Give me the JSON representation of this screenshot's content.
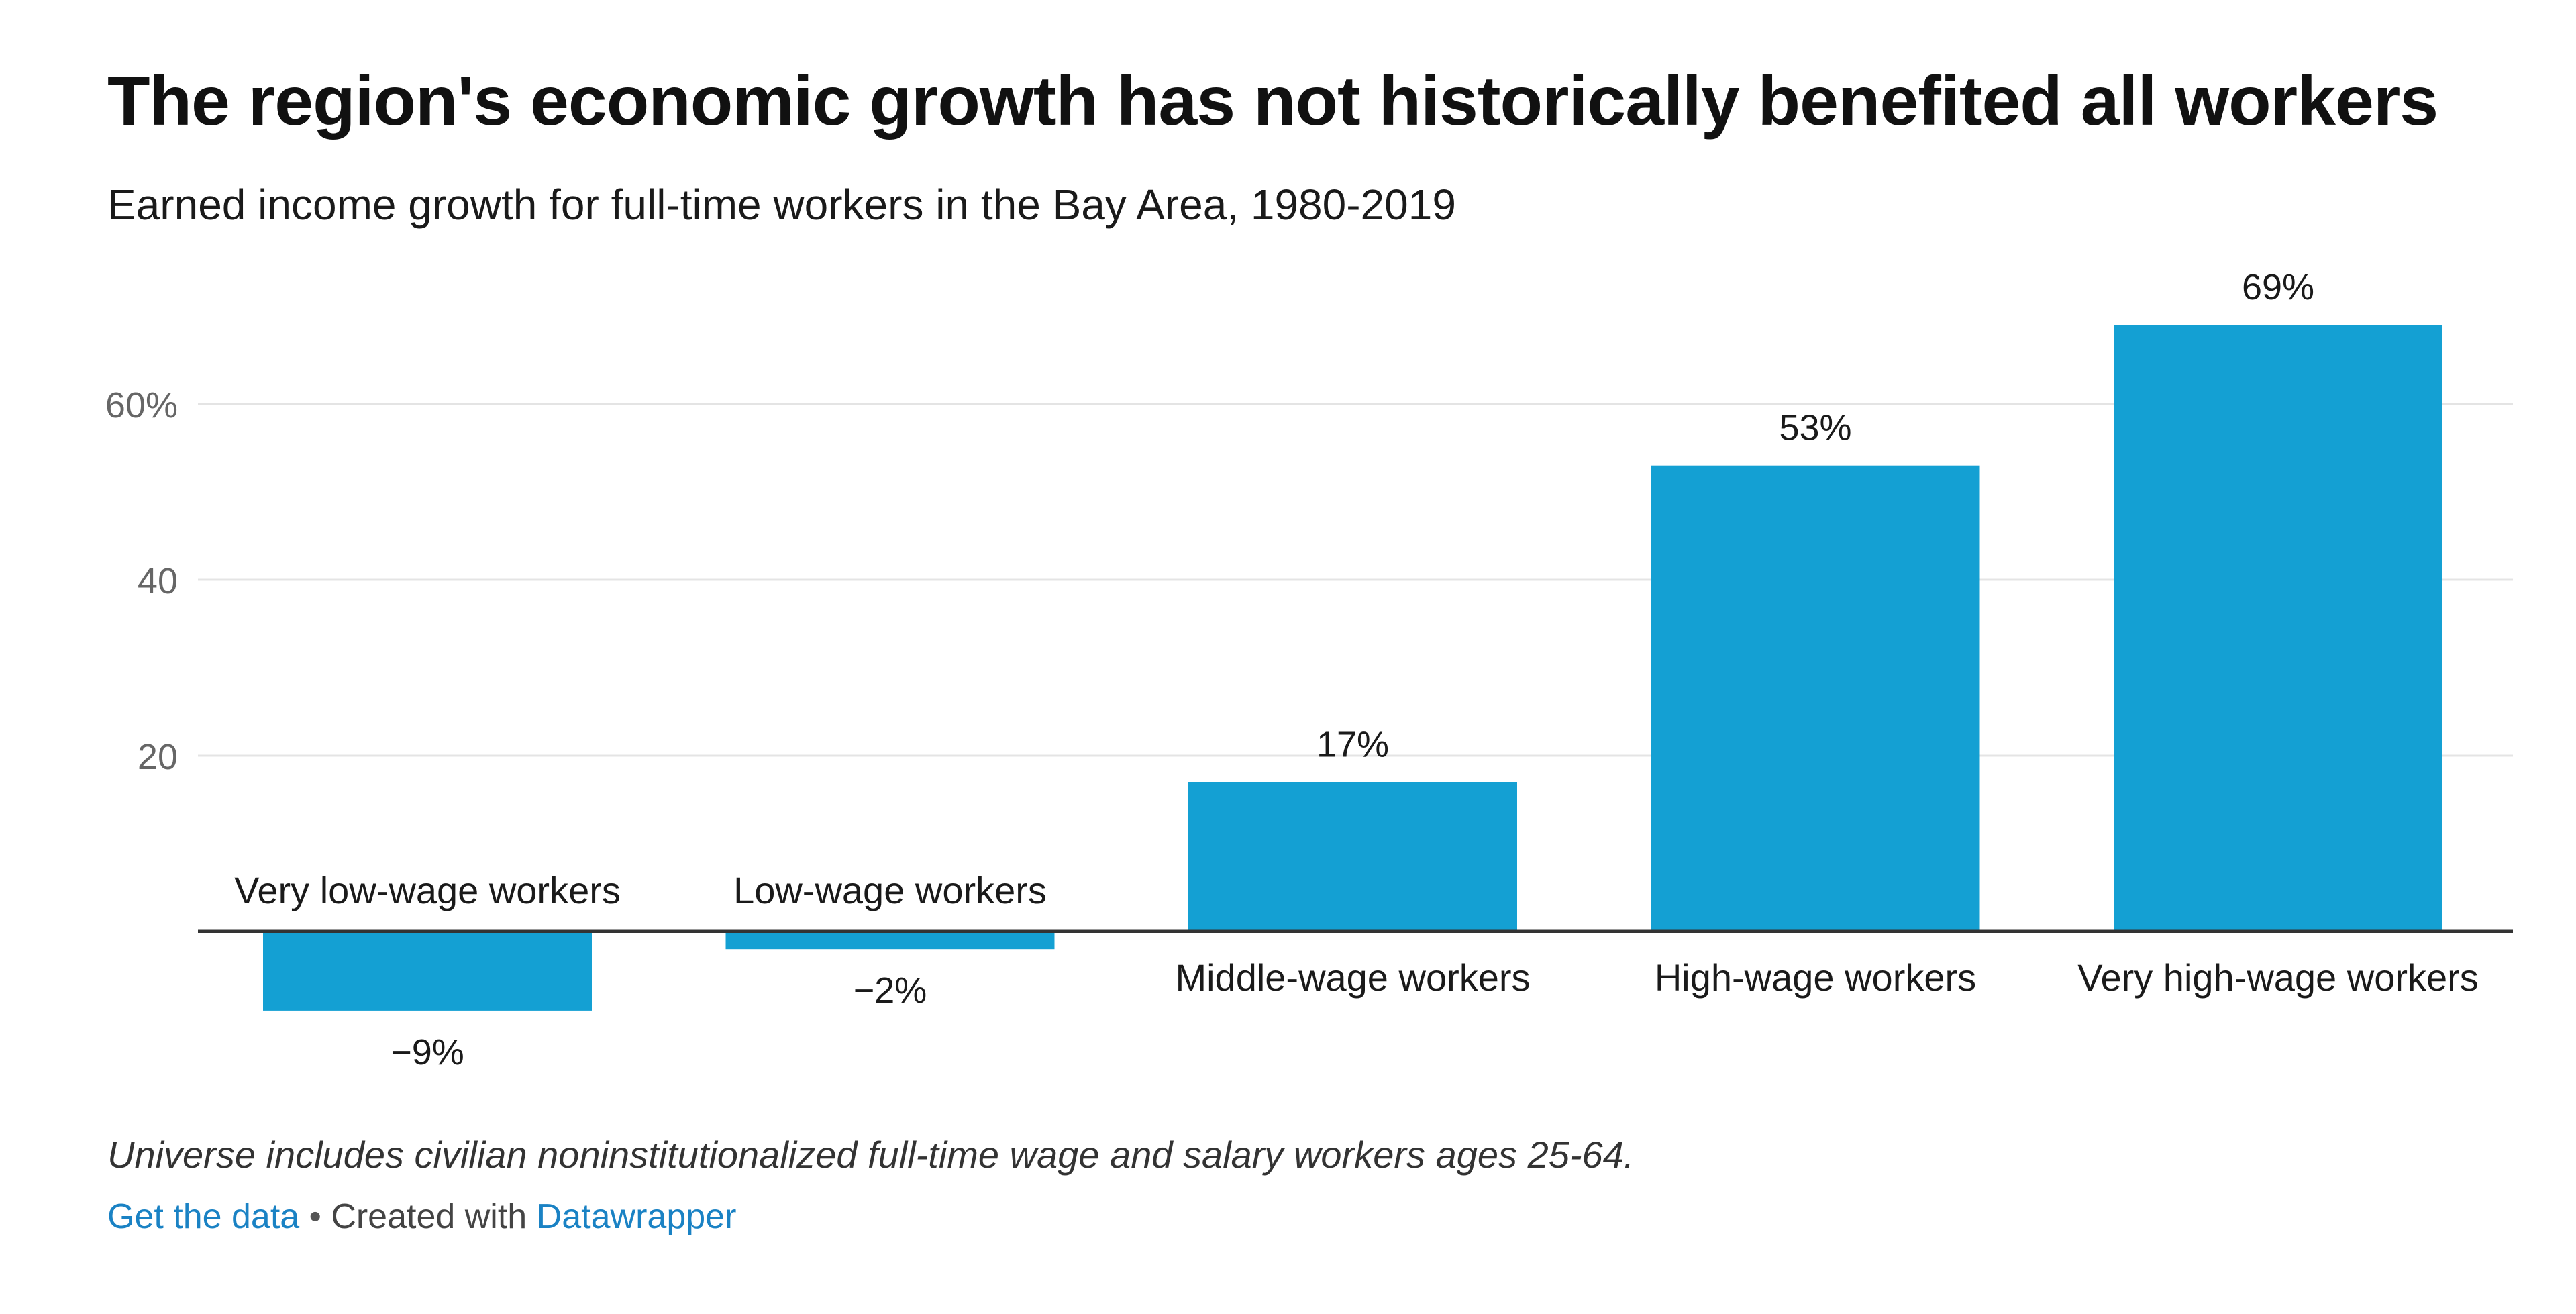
{
  "header": {
    "title": "The region's economic growth has not historically benefited all workers",
    "subtitle": "Earned income growth for full-time workers in the Bay Area, 1980-2019"
  },
  "chart_data": {
    "type": "bar",
    "categories": [
      "Very low-wage workers",
      "Low-wage workers",
      "Middle-wage workers",
      "High-wage workers",
      "Very high-wage workers"
    ],
    "values": [
      -9,
      -2,
      17,
      53,
      69
    ],
    "value_labels": [
      "−9%",
      "−2%",
      "17%",
      "53%",
      "69%"
    ],
    "y_ticks": [
      20,
      40,
      60
    ],
    "y_tick_labels": [
      "20",
      "40",
      "60%"
    ],
    "ylim": [
      -9,
      69
    ],
    "grid": true,
    "bar_color": "#14a0d3",
    "title": "",
    "xlabel": "",
    "ylabel": ""
  },
  "footer": {
    "note": "Universe includes civilian noninstitutionalized full-time wage and salary workers ages 25-64.",
    "get_data": "Get the data",
    "separator": " • ",
    "created_with": "Created with ",
    "tool": "Datawrapper"
  },
  "colors": {
    "bar": "#14a0d3",
    "link": "#1a82c4",
    "grid": "#e4e4e4",
    "axis": "#333333"
  }
}
